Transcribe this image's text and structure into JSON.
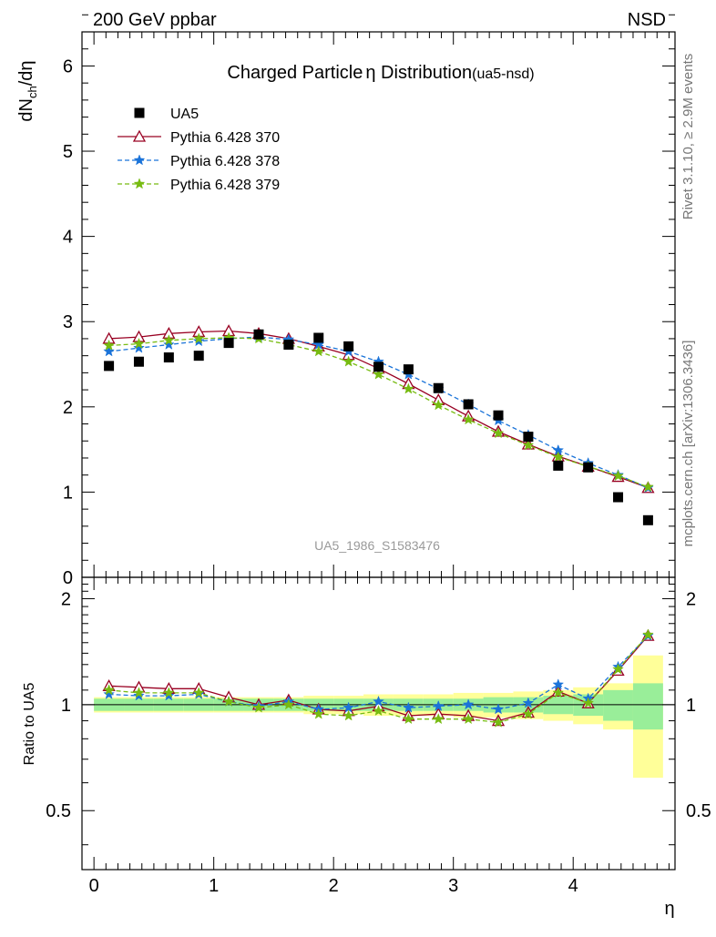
{
  "header": {
    "left": "200 GeV ppbar",
    "right": "NSD"
  },
  "side_text": {
    "top": "Rivet 3.1.10, ≥ 2.9M events",
    "bottom": "mcplots.cern.ch [arXiv:1306.3436]"
  },
  "chart_data": {
    "type": "line",
    "title": "Charged Particle η Distribution",
    "title_main": "Charged Particle",
    "title_symbol": "η",
    "title_rest": " Distribution",
    "title_tag": "(ua5-nsd)",
    "analysis_label": "UA5_1986_S1583476",
    "xlabel": "η",
    "ylabel_main": "dN",
    "ylabel_sub": "ch",
    "ylabel_tail": "/dη",
    "ratio_ylabel": "Ratio to UA5",
    "xlim": [
      -0.1,
      4.85
    ],
    "ylim": [
      0,
      6.4
    ],
    "ratio_ylim": [
      0.34,
      2.3
    ],
    "x_ticks": [
      "0",
      "1",
      "2",
      "3",
      "4"
    ],
    "y_ticks": [
      "0",
      "1",
      "2",
      "3",
      "4",
      "5",
      "6"
    ],
    "ratio_ticks": [
      "0.5",
      "1",
      "2"
    ],
    "x": [
      0.125,
      0.375,
      0.625,
      0.875,
      1.125,
      1.375,
      1.625,
      1.875,
      2.125,
      2.375,
      2.625,
      2.875,
      3.125,
      3.375,
      3.625,
      3.875,
      4.125,
      4.375,
      4.625
    ],
    "reference": {
      "name": "UA5",
      "values": [
        2.48,
        2.53,
        2.58,
        2.6,
        2.75,
        2.85,
        2.73,
        2.81,
        2.71,
        2.47,
        2.44,
        2.22,
        2.03,
        1.9,
        1.65,
        1.31,
        1.29,
        0.94,
        0.67
      ],
      "band_inner": [
        0.04,
        0.04,
        0.04,
        0.04,
        0.04,
        0.04,
        0.04,
        0.04,
        0.04,
        0.04,
        0.04,
        0.04,
        0.04,
        0.05,
        0.05,
        0.06,
        0.07,
        0.1,
        0.15
      ],
      "band_outer": [
        0.05,
        0.05,
        0.05,
        0.05,
        0.05,
        0.05,
        0.05,
        0.06,
        0.06,
        0.07,
        0.07,
        0.07,
        0.08,
        0.08,
        0.09,
        0.1,
        0.12,
        0.15,
        0.38
      ]
    },
    "series": [
      {
        "name": "Pythia 6.428 370",
        "color": "#990022",
        "dashed": false,
        "marker": "triangle",
        "values": [
          2.8,
          2.82,
          2.86,
          2.88,
          2.89,
          2.86,
          2.8,
          2.71,
          2.61,
          2.45,
          2.27,
          2.08,
          1.89,
          1.71,
          1.56,
          1.42,
          1.3,
          1.18,
          1.05
        ]
      },
      {
        "name": "Pythia 6.428 378",
        "color": "#1a73d9",
        "dashed": true,
        "marker": "star",
        "values": [
          2.65,
          2.69,
          2.73,
          2.77,
          2.8,
          2.82,
          2.79,
          2.73,
          2.65,
          2.53,
          2.38,
          2.21,
          2.03,
          1.84,
          1.67,
          1.49,
          1.34,
          1.2,
          1.05
        ]
      },
      {
        "name": "Pythia 6.428 379",
        "color": "#77bb11",
        "dashed": true,
        "marker": "star",
        "values": [
          2.72,
          2.74,
          2.78,
          2.8,
          2.81,
          2.8,
          2.73,
          2.65,
          2.53,
          2.38,
          2.21,
          2.02,
          1.85,
          1.69,
          1.55,
          1.41,
          1.3,
          1.19,
          1.06
        ]
      }
    ],
    "ratio_series": [
      {
        "name": "Pythia 6.428 370",
        "values": [
          1.13,
          1.12,
          1.11,
          1.11,
          1.05,
          1.0,
          1.03,
          0.97,
          0.96,
          0.99,
          0.93,
          0.94,
          0.93,
          0.9,
          0.95,
          1.09,
          1.01,
          1.25,
          1.57
        ]
      },
      {
        "name": "Pythia 6.428 378",
        "values": [
          1.07,
          1.06,
          1.06,
          1.07,
          1.02,
          0.99,
          1.02,
          0.97,
          0.98,
          1.02,
          0.98,
          0.99,
          1.0,
          0.97,
          1.01,
          1.14,
          1.04,
          1.28,
          1.57
        ]
      },
      {
        "name": "Pythia 6.428 379",
        "values": [
          1.1,
          1.08,
          1.08,
          1.08,
          1.02,
          0.98,
          1.0,
          0.94,
          0.93,
          0.96,
          0.91,
          0.91,
          0.91,
          0.89,
          0.94,
          1.08,
          1.01,
          1.26,
          1.58
        ]
      }
    ]
  }
}
